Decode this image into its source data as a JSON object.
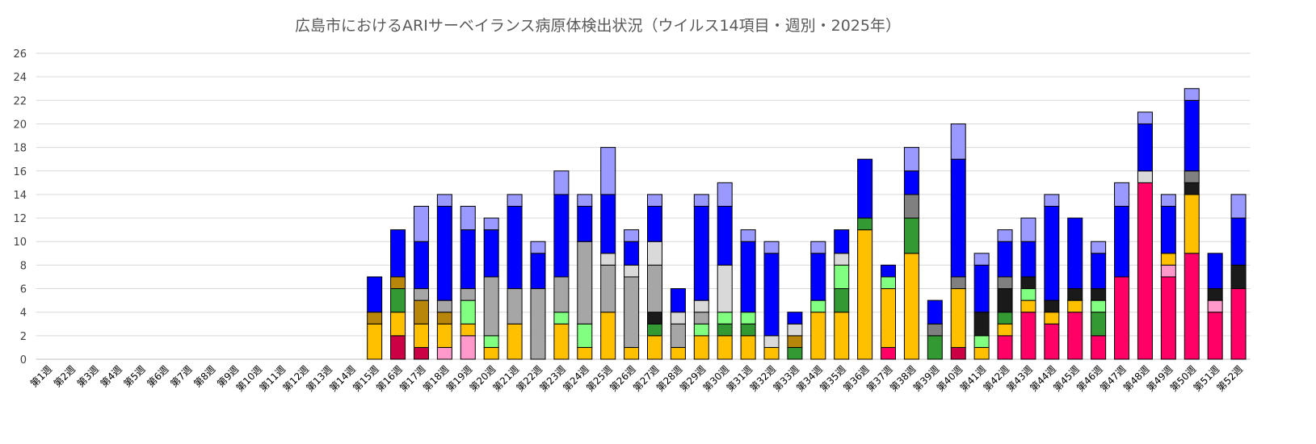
{
  "chart_data": {
    "type": "bar",
    "stacked": true,
    "title": "広島市におけるARIサーベイランス病原体検出状況（ウイルス14項目・週別・2025年）",
    "xlabel": "",
    "ylabel": "",
    "ylim": [
      0,
      26
    ],
    "yticks": [
      0,
      2,
      4,
      6,
      8,
      10,
      12,
      14,
      16,
      18,
      20,
      22,
      24,
      26
    ],
    "grid": true,
    "legend": "none",
    "categories": [
      "第1週",
      "第2週",
      "第3週",
      "第4週",
      "第5週",
      "第6週",
      "第7週",
      "第8週",
      "第9週",
      "第10週",
      "第11週",
      "第12週",
      "第13週",
      "第14週",
      "第15週",
      "第16週",
      "第17週",
      "第18週",
      "第19週",
      "第20週",
      "第21週",
      "第22週",
      "第23週",
      "第24週",
      "第25週",
      "第26週",
      "第27週",
      "第28週",
      "第29週",
      "第30週",
      "第31週",
      "第32週",
      "第33週",
      "第34週",
      "第35週",
      "第36週",
      "第37週",
      "第38週",
      "第39週",
      "第40週",
      "第41週",
      "第42週",
      "第43週",
      "第44週",
      "第45週",
      "第46週",
      "第47週",
      "第48週",
      "第49週",
      "第50週",
      "第51週",
      "第52週"
    ],
    "series": [
      {
        "color": "#CC0044",
        "values": [
          0,
          0,
          0,
          0,
          0,
          0,
          0,
          0,
          0,
          0,
          0,
          0,
          0,
          0,
          0,
          2,
          1,
          0,
          0,
          0,
          0,
          0,
          0,
          0,
          0,
          0,
          0,
          0,
          0,
          0,
          0,
          0,
          0,
          0,
          0,
          0,
          0,
          0,
          0,
          1,
          0,
          0,
          0,
          0,
          0,
          0,
          0,
          0,
          0,
          0,
          0,
          0
        ]
      },
      {
        "color": "#FF0066",
        "values": [
          0,
          0,
          0,
          0,
          0,
          0,
          0,
          0,
          0,
          0,
          0,
          0,
          0,
          0,
          0,
          0,
          0,
          0,
          0,
          0,
          0,
          0,
          0,
          0,
          0,
          0,
          0,
          0,
          0,
          0,
          0,
          0,
          0,
          0,
          0,
          0,
          1,
          0,
          0,
          0,
          0,
          2,
          4,
          3,
          4,
          2,
          7,
          15,
          7,
          9,
          4,
          6
        ]
      },
      {
        "color": "#FF99CC",
        "values": [
          0,
          0,
          0,
          0,
          0,
          0,
          0,
          0,
          0,
          0,
          0,
          0,
          0,
          0,
          0,
          0,
          0,
          1,
          2,
          0,
          0,
          0,
          0,
          0,
          0,
          0,
          0,
          0,
          0,
          0,
          0,
          0,
          0,
          0,
          0,
          0,
          0,
          0,
          0,
          0,
          0,
          0,
          0,
          0,
          0,
          0,
          0,
          0,
          1,
          0,
          1,
          0
        ]
      },
      {
        "color": "#FFC000",
        "values": [
          0,
          0,
          0,
          0,
          0,
          0,
          0,
          0,
          0,
          0,
          0,
          0,
          0,
          0,
          3,
          2,
          2,
          2,
          1,
          1,
          3,
          0,
          3,
          1,
          4,
          1,
          2,
          1,
          2,
          2,
          2,
          1,
          0,
          4,
          4,
          11,
          5,
          9,
          0,
          5,
          1,
          1,
          1,
          1,
          1,
          0,
          0,
          0,
          1,
          5,
          0,
          0
        ]
      },
      {
        "color": "#339933",
        "values": [
          0,
          0,
          0,
          0,
          0,
          0,
          0,
          0,
          0,
          0,
          0,
          0,
          0,
          0,
          0,
          2,
          0,
          0,
          0,
          0,
          0,
          0,
          0,
          0,
          0,
          0,
          1,
          0,
          0,
          1,
          1,
          0,
          1,
          0,
          2,
          1,
          0,
          3,
          2,
          0,
          0,
          1,
          0,
          0,
          0,
          2,
          0,
          0,
          0,
          0,
          0,
          0
        ]
      },
      {
        "color": "#80FF80",
        "values": [
          0,
          0,
          0,
          0,
          0,
          0,
          0,
          0,
          0,
          0,
          0,
          0,
          0,
          0,
          0,
          0,
          0,
          0,
          2,
          1,
          0,
          0,
          1,
          2,
          0,
          0,
          0,
          0,
          1,
          1,
          1,
          0,
          0,
          1,
          2,
          0,
          1,
          0,
          0,
          0,
          1,
          0,
          1,
          0,
          0,
          1,
          0,
          0,
          0,
          0,
          0,
          0
        ]
      },
      {
        "color": "#1A1A1A",
        "values": [
          0,
          0,
          0,
          0,
          0,
          0,
          0,
          0,
          0,
          0,
          0,
          0,
          0,
          0,
          0,
          0,
          0,
          0,
          0,
          0,
          0,
          0,
          0,
          0,
          0,
          0,
          1,
          0,
          0,
          0,
          0,
          0,
          0,
          0,
          0,
          0,
          0,
          0,
          0,
          0,
          2,
          2,
          1,
          1,
          1,
          1,
          0,
          0,
          0,
          1,
          1,
          2
        ]
      },
      {
        "color": "#B8860B",
        "values": [
          0,
          0,
          0,
          0,
          0,
          0,
          0,
          0,
          0,
          0,
          0,
          0,
          0,
          0,
          1,
          1,
          2,
          1,
          0,
          0,
          0,
          0,
          0,
          0,
          0,
          0,
          0,
          0,
          0,
          0,
          0,
          0,
          1,
          0,
          0,
          0,
          0,
          0,
          0,
          0,
          0,
          0,
          0,
          0,
          0,
          0,
          0,
          0,
          0,
          0,
          0,
          0
        ]
      },
      {
        "color": "#808080",
        "values": [
          0,
          0,
          0,
          0,
          0,
          0,
          0,
          0,
          0,
          0,
          0,
          0,
          0,
          0,
          0,
          0,
          0,
          0,
          0,
          0,
          0,
          0,
          0,
          0,
          0,
          0,
          0,
          0,
          0,
          0,
          0,
          0,
          0,
          0,
          0,
          0,
          0,
          2,
          1,
          1,
          0,
          1,
          0,
          0,
          0,
          0,
          0,
          0,
          0,
          1,
          0,
          0
        ]
      },
      {
        "color": "#A6A6A6",
        "values": [
          0,
          0,
          0,
          0,
          0,
          0,
          0,
          0,
          0,
          0,
          0,
          0,
          0,
          0,
          0,
          0,
          1,
          1,
          1,
          5,
          3,
          6,
          3,
          7,
          4,
          6,
          4,
          2,
          1,
          0,
          0,
          0,
          0,
          0,
          0,
          0,
          0,
          0,
          0,
          0,
          0,
          0,
          0,
          0,
          0,
          0,
          0,
          0,
          0,
          0,
          0,
          0
        ]
      },
      {
        "color": "#D9D9D9",
        "values": [
          0,
          0,
          0,
          0,
          0,
          0,
          0,
          0,
          0,
          0,
          0,
          0,
          0,
          0,
          0,
          0,
          0,
          0,
          0,
          0,
          0,
          0,
          0,
          0,
          1,
          1,
          2,
          1,
          1,
          4,
          0,
          1,
          1,
          0,
          1,
          0,
          0,
          0,
          0,
          0,
          0,
          0,
          0,
          0,
          0,
          0,
          0,
          1,
          0,
          0,
          0,
          0
        ]
      },
      {
        "color": "#0000FF",
        "values": [
          0,
          0,
          0,
          0,
          0,
          0,
          0,
          0,
          0,
          0,
          0,
          0,
          0,
          0,
          3,
          4,
          4,
          8,
          5,
          4,
          7,
          3,
          7,
          3,
          5,
          2,
          3,
          2,
          8,
          5,
          6,
          7,
          1,
          4,
          2,
          5,
          1,
          2,
          2,
          10,
          4,
          3,
          3,
          8,
          6,
          3,
          6,
          4,
          4,
          6,
          3,
          4
        ]
      },
      {
        "color": "#9999FF",
        "values": [
          0,
          0,
          0,
          0,
          0,
          0,
          0,
          0,
          0,
          0,
          0,
          0,
          0,
          0,
          0,
          0,
          3,
          1,
          2,
          1,
          1,
          1,
          2,
          1,
          4,
          1,
          1,
          0,
          1,
          2,
          1,
          1,
          0,
          1,
          0,
          0,
          0,
          2,
          0,
          3,
          1,
          1,
          2,
          1,
          0,
          1,
          2,
          1,
          1,
          1,
          0,
          2
        ]
      }
    ]
  }
}
